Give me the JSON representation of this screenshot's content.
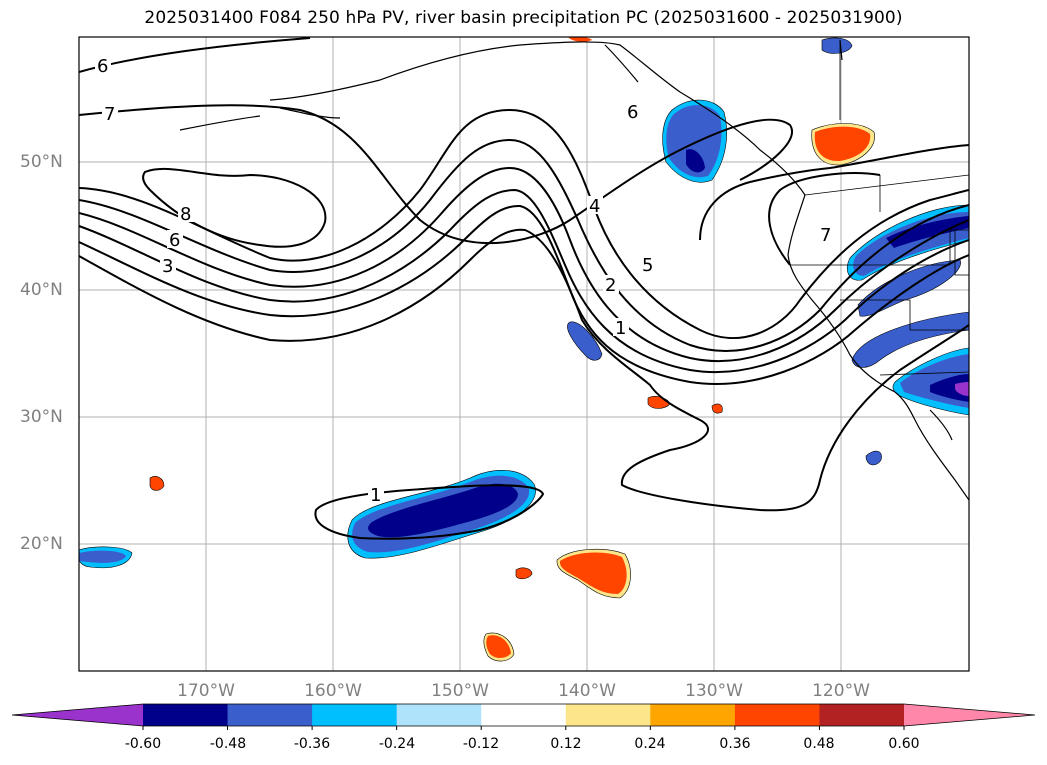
{
  "title": "2025031400 F084 250 hPa PV, river basin precipitation PC (2025031600 - 2025031900)",
  "lat_labels": [
    "50°N",
    "40°N",
    "30°N",
    "20°N"
  ],
  "lon_labels": [
    "170°W",
    "160°W",
    "150°W",
    "140°W",
    "130°W",
    "120°W"
  ],
  "contour_labels": [
    "6",
    "7",
    "6",
    "8",
    "6",
    "3",
    "4",
    "5",
    "2",
    "1",
    "7",
    "1"
  ],
  "colorbar": {
    "ticks": [
      "-0.60",
      "-0.48",
      "-0.36",
      "-0.24",
      "-0.12",
      "0.12",
      "0.24",
      "0.36",
      "0.48",
      "0.60"
    ],
    "colors": [
      "#9933cc",
      "#00008b",
      "#3a5fcd",
      "#00bfff",
      "#afe3fb",
      "#ffffff",
      "#fde68a",
      "#ffa500",
      "#ff4500",
      "#b22222",
      "#ff88aa"
    ]
  }
}
